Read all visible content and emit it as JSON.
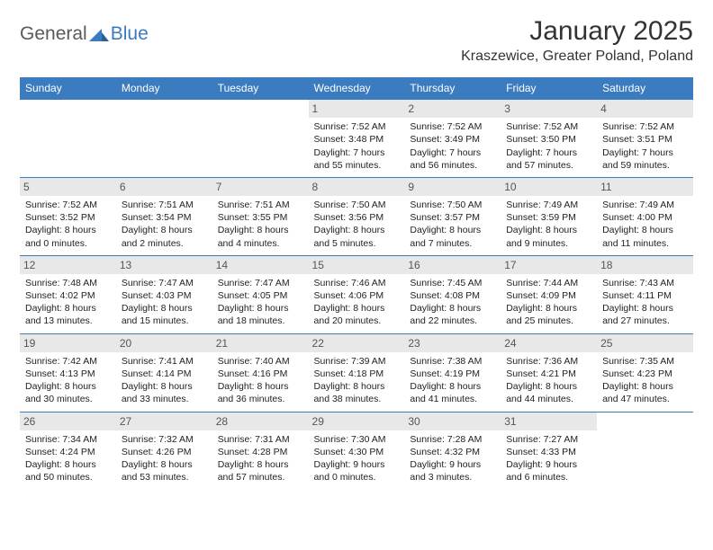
{
  "logo": {
    "text1": "General",
    "text2": "Blue"
  },
  "title": "January 2025",
  "location": "Kraszewice, Greater Poland, Poland",
  "colors": {
    "header_bg": "#3b7bbf",
    "header_fg": "#ffffff",
    "daynum_bg": "#e8e8e8",
    "daynum_fg": "#555555",
    "border": "#3b7bbf",
    "logo_gray": "#5a5a5a",
    "logo_blue": "#3b7bbf",
    "text": "#222222"
  },
  "dayNames": [
    "Sunday",
    "Monday",
    "Tuesday",
    "Wednesday",
    "Thursday",
    "Friday",
    "Saturday"
  ],
  "weeks": [
    [
      {
        "n": "",
        "sr": "",
        "ss": "",
        "dl": ""
      },
      {
        "n": "",
        "sr": "",
        "ss": "",
        "dl": ""
      },
      {
        "n": "",
        "sr": "",
        "ss": "",
        "dl": ""
      },
      {
        "n": "1",
        "sr": "7:52 AM",
        "ss": "3:48 PM",
        "dl": "7 hours and 55 minutes."
      },
      {
        "n": "2",
        "sr": "7:52 AM",
        "ss": "3:49 PM",
        "dl": "7 hours and 56 minutes."
      },
      {
        "n": "3",
        "sr": "7:52 AM",
        "ss": "3:50 PM",
        "dl": "7 hours and 57 minutes."
      },
      {
        "n": "4",
        "sr": "7:52 AM",
        "ss": "3:51 PM",
        "dl": "7 hours and 59 minutes."
      }
    ],
    [
      {
        "n": "5",
        "sr": "7:52 AM",
        "ss": "3:52 PM",
        "dl": "8 hours and 0 minutes."
      },
      {
        "n": "6",
        "sr": "7:51 AM",
        "ss": "3:54 PM",
        "dl": "8 hours and 2 minutes."
      },
      {
        "n": "7",
        "sr": "7:51 AM",
        "ss": "3:55 PM",
        "dl": "8 hours and 4 minutes."
      },
      {
        "n": "8",
        "sr": "7:50 AM",
        "ss": "3:56 PM",
        "dl": "8 hours and 5 minutes."
      },
      {
        "n": "9",
        "sr": "7:50 AM",
        "ss": "3:57 PM",
        "dl": "8 hours and 7 minutes."
      },
      {
        "n": "10",
        "sr": "7:49 AM",
        "ss": "3:59 PM",
        "dl": "8 hours and 9 minutes."
      },
      {
        "n": "11",
        "sr": "7:49 AM",
        "ss": "4:00 PM",
        "dl": "8 hours and 11 minutes."
      }
    ],
    [
      {
        "n": "12",
        "sr": "7:48 AM",
        "ss": "4:02 PM",
        "dl": "8 hours and 13 minutes."
      },
      {
        "n": "13",
        "sr": "7:47 AM",
        "ss": "4:03 PM",
        "dl": "8 hours and 15 minutes."
      },
      {
        "n": "14",
        "sr": "7:47 AM",
        "ss": "4:05 PM",
        "dl": "8 hours and 18 minutes."
      },
      {
        "n": "15",
        "sr": "7:46 AM",
        "ss": "4:06 PM",
        "dl": "8 hours and 20 minutes."
      },
      {
        "n": "16",
        "sr": "7:45 AM",
        "ss": "4:08 PM",
        "dl": "8 hours and 22 minutes."
      },
      {
        "n": "17",
        "sr": "7:44 AM",
        "ss": "4:09 PM",
        "dl": "8 hours and 25 minutes."
      },
      {
        "n": "18",
        "sr": "7:43 AM",
        "ss": "4:11 PM",
        "dl": "8 hours and 27 minutes."
      }
    ],
    [
      {
        "n": "19",
        "sr": "7:42 AM",
        "ss": "4:13 PM",
        "dl": "8 hours and 30 minutes."
      },
      {
        "n": "20",
        "sr": "7:41 AM",
        "ss": "4:14 PM",
        "dl": "8 hours and 33 minutes."
      },
      {
        "n": "21",
        "sr": "7:40 AM",
        "ss": "4:16 PM",
        "dl": "8 hours and 36 minutes."
      },
      {
        "n": "22",
        "sr": "7:39 AM",
        "ss": "4:18 PM",
        "dl": "8 hours and 38 minutes."
      },
      {
        "n": "23",
        "sr": "7:38 AM",
        "ss": "4:19 PM",
        "dl": "8 hours and 41 minutes."
      },
      {
        "n": "24",
        "sr": "7:36 AM",
        "ss": "4:21 PM",
        "dl": "8 hours and 44 minutes."
      },
      {
        "n": "25",
        "sr": "7:35 AM",
        "ss": "4:23 PM",
        "dl": "8 hours and 47 minutes."
      }
    ],
    [
      {
        "n": "26",
        "sr": "7:34 AM",
        "ss": "4:24 PM",
        "dl": "8 hours and 50 minutes."
      },
      {
        "n": "27",
        "sr": "7:32 AM",
        "ss": "4:26 PM",
        "dl": "8 hours and 53 minutes."
      },
      {
        "n": "28",
        "sr": "7:31 AM",
        "ss": "4:28 PM",
        "dl": "8 hours and 57 minutes."
      },
      {
        "n": "29",
        "sr": "7:30 AM",
        "ss": "4:30 PM",
        "dl": "9 hours and 0 minutes."
      },
      {
        "n": "30",
        "sr": "7:28 AM",
        "ss": "4:32 PM",
        "dl": "9 hours and 3 minutes."
      },
      {
        "n": "31",
        "sr": "7:27 AM",
        "ss": "4:33 PM",
        "dl": "9 hours and 6 minutes."
      },
      {
        "n": "",
        "sr": "",
        "ss": "",
        "dl": ""
      }
    ]
  ],
  "labels": {
    "sunrise": "Sunrise:",
    "sunset": "Sunset:",
    "daylight": "Daylight:"
  }
}
